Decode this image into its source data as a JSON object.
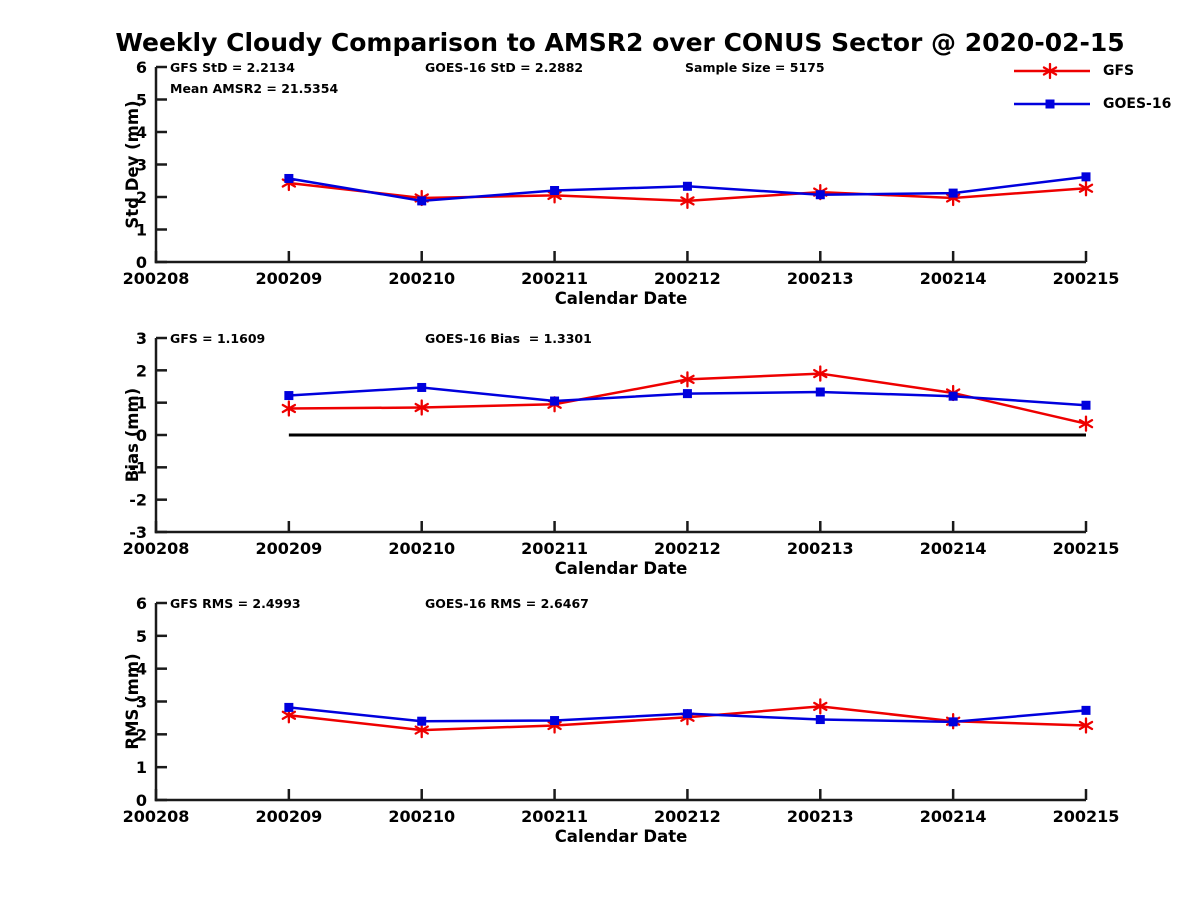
{
  "title": "Weekly Cloudy Comparison to AMSR2 over CONUS Sector @ 2020-02-15",
  "colors": {
    "gfs": "#ee0000",
    "goes16": "#0000dd",
    "axis": "#1a1a1a",
    "zero_line": "#000000"
  },
  "legend": {
    "items": [
      {
        "name": "GFS",
        "color": "#ee0000",
        "marker": "asterisk"
      },
      {
        "name": "GOES-16",
        "color": "#0000dd",
        "marker": "square"
      }
    ]
  },
  "x_axis": {
    "label": "Calendar Date",
    "tick_labels": [
      "200208",
      "200209",
      "200210",
      "200211",
      "200212",
      "200213",
      "200214",
      "200215"
    ]
  },
  "chart_data": [
    {
      "type": "line",
      "ylabel": "Std Dev (mm)",
      "xlabel": "Calendar Date",
      "ylim": [
        0,
        6
      ],
      "yticks": [
        0,
        1,
        2,
        3,
        4,
        5,
        6
      ],
      "grid": false,
      "zero_line": false,
      "annotations": [
        {
          "text": "GFS StD = 2.2134",
          "col": 0,
          "row": 0
        },
        {
          "text": "Mean AMSR2 = 21.5354",
          "col": 0,
          "row": 1
        },
        {
          "text": "GOES-16 StD = 2.2882",
          "col": 1,
          "row": 0
        },
        {
          "text": "Sample Size = 5175",
          "col": 2,
          "row": 0
        }
      ],
      "categories": [
        "200209",
        "200210",
        "200211",
        "200212",
        "200213",
        "200214",
        "200215"
      ],
      "series": [
        {
          "name": "GFS",
          "values": [
            2.43,
            1.97,
            2.05,
            1.88,
            2.15,
            1.97,
            2.27
          ]
        },
        {
          "name": "GOES-16",
          "values": [
            2.57,
            1.88,
            2.2,
            2.33,
            2.07,
            2.12,
            2.62
          ]
        }
      ]
    },
    {
      "type": "line",
      "ylabel": "Bias (mm)",
      "xlabel": "Calendar Date",
      "ylim": [
        -3,
        3
      ],
      "yticks": [
        -3,
        -2,
        -1,
        0,
        1,
        2,
        3
      ],
      "grid": false,
      "zero_line": true,
      "annotations": [
        {
          "text": "GFS = 1.1609",
          "col": 0,
          "row": 0
        },
        {
          "text": "GOES-16 Bias  = 1.3301",
          "col": 1,
          "row": 0
        }
      ],
      "categories": [
        "200209",
        "200210",
        "200211",
        "200212",
        "200213",
        "200214",
        "200215"
      ],
      "series": [
        {
          "name": "GFS",
          "values": [
            0.82,
            0.85,
            0.95,
            1.72,
            1.9,
            1.3,
            0.35
          ]
        },
        {
          "name": "GOES-16",
          "values": [
            1.22,
            1.47,
            1.05,
            1.28,
            1.33,
            1.2,
            0.92
          ]
        }
      ]
    },
    {
      "type": "line",
      "ylabel": "RMS (mm)",
      "xlabel": "Calendar Date",
      "ylim": [
        0,
        6
      ],
      "yticks": [
        0,
        1,
        2,
        3,
        4,
        5,
        6
      ],
      "grid": false,
      "zero_line": false,
      "annotations": [
        {
          "text": "GFS RMS = 2.4993",
          "col": 0,
          "row": 0
        },
        {
          "text": "GOES-16 RMS = 2.6467",
          "col": 1,
          "row": 0
        }
      ],
      "categories": [
        "200209",
        "200210",
        "200211",
        "200212",
        "200213",
        "200214",
        "200215"
      ],
      "series": [
        {
          "name": "GFS",
          "values": [
            2.58,
            2.13,
            2.27,
            2.52,
            2.85,
            2.4,
            2.27
          ]
        },
        {
          "name": "GOES-16",
          "values": [
            2.82,
            2.4,
            2.42,
            2.63,
            2.45,
            2.38,
            2.73
          ]
        }
      ]
    }
  ]
}
